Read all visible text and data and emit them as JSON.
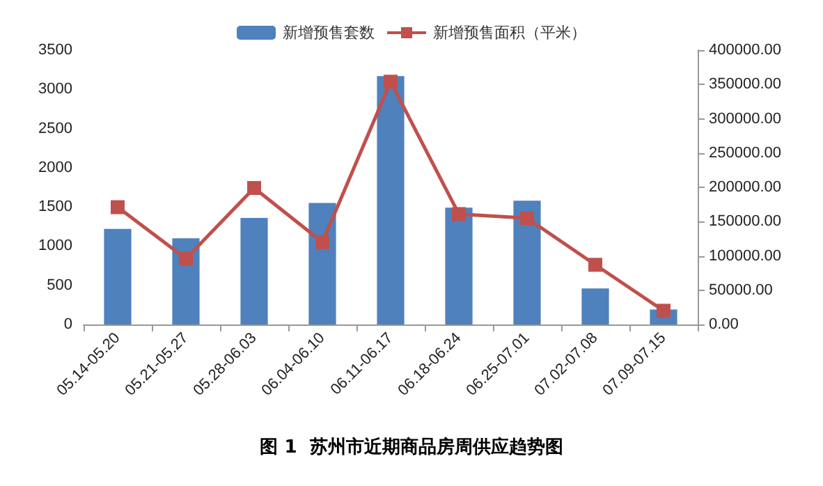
{
  "chart_data": {
    "type": "bar",
    "title": "图 1  苏州市近期商品房周供应趋势图",
    "categories": [
      "05.14-05.20",
      "05.21-05.27",
      "05.28-06.03",
      "06.04-06.10",
      "06.11-06.17",
      "06.18-06.24",
      "06.25-07.01",
      "07.02-07.08",
      "07.09-07.15"
    ],
    "series": [
      {
        "name": "新增预售套数",
        "color": "#4f81bd",
        "values": [
          1220,
          1100,
          1360,
          1550,
          3170,
          1490,
          1580,
          460,
          190
        ]
      },
      {
        "name": "新增预售面积（平米）",
        "type": "line",
        "axis": "y2",
        "color": "#c0504d",
        "values": [
          171000,
          96000,
          199000,
          120000,
          354000,
          161000,
          155000,
          87000,
          20000
        ]
      }
    ],
    "ylim": [
      0,
      3500
    ],
    "yticks": [
      0,
      500,
      1000,
      1500,
      2000,
      2500,
      3000,
      3500
    ],
    "y2lim": [
      0,
      400000
    ],
    "y2ticks": [
      {
        "value": 0,
        "label": "0.00"
      },
      {
        "value": 50000,
        "label": "50000.00"
      },
      {
        "value": 100000,
        "label": "100000.00"
      },
      {
        "value": 150000,
        "label": "150000.00"
      },
      {
        "value": 200000,
        "label": "200000.00"
      },
      {
        "value": 250000,
        "label": "250000.00"
      },
      {
        "value": 300000,
        "label": "300000.00"
      },
      {
        "value": 350000,
        "label": "350000.00"
      },
      {
        "value": 400000,
        "label": "400000.00"
      }
    ],
    "legend": "top",
    "marker": "square",
    "grid": false
  }
}
